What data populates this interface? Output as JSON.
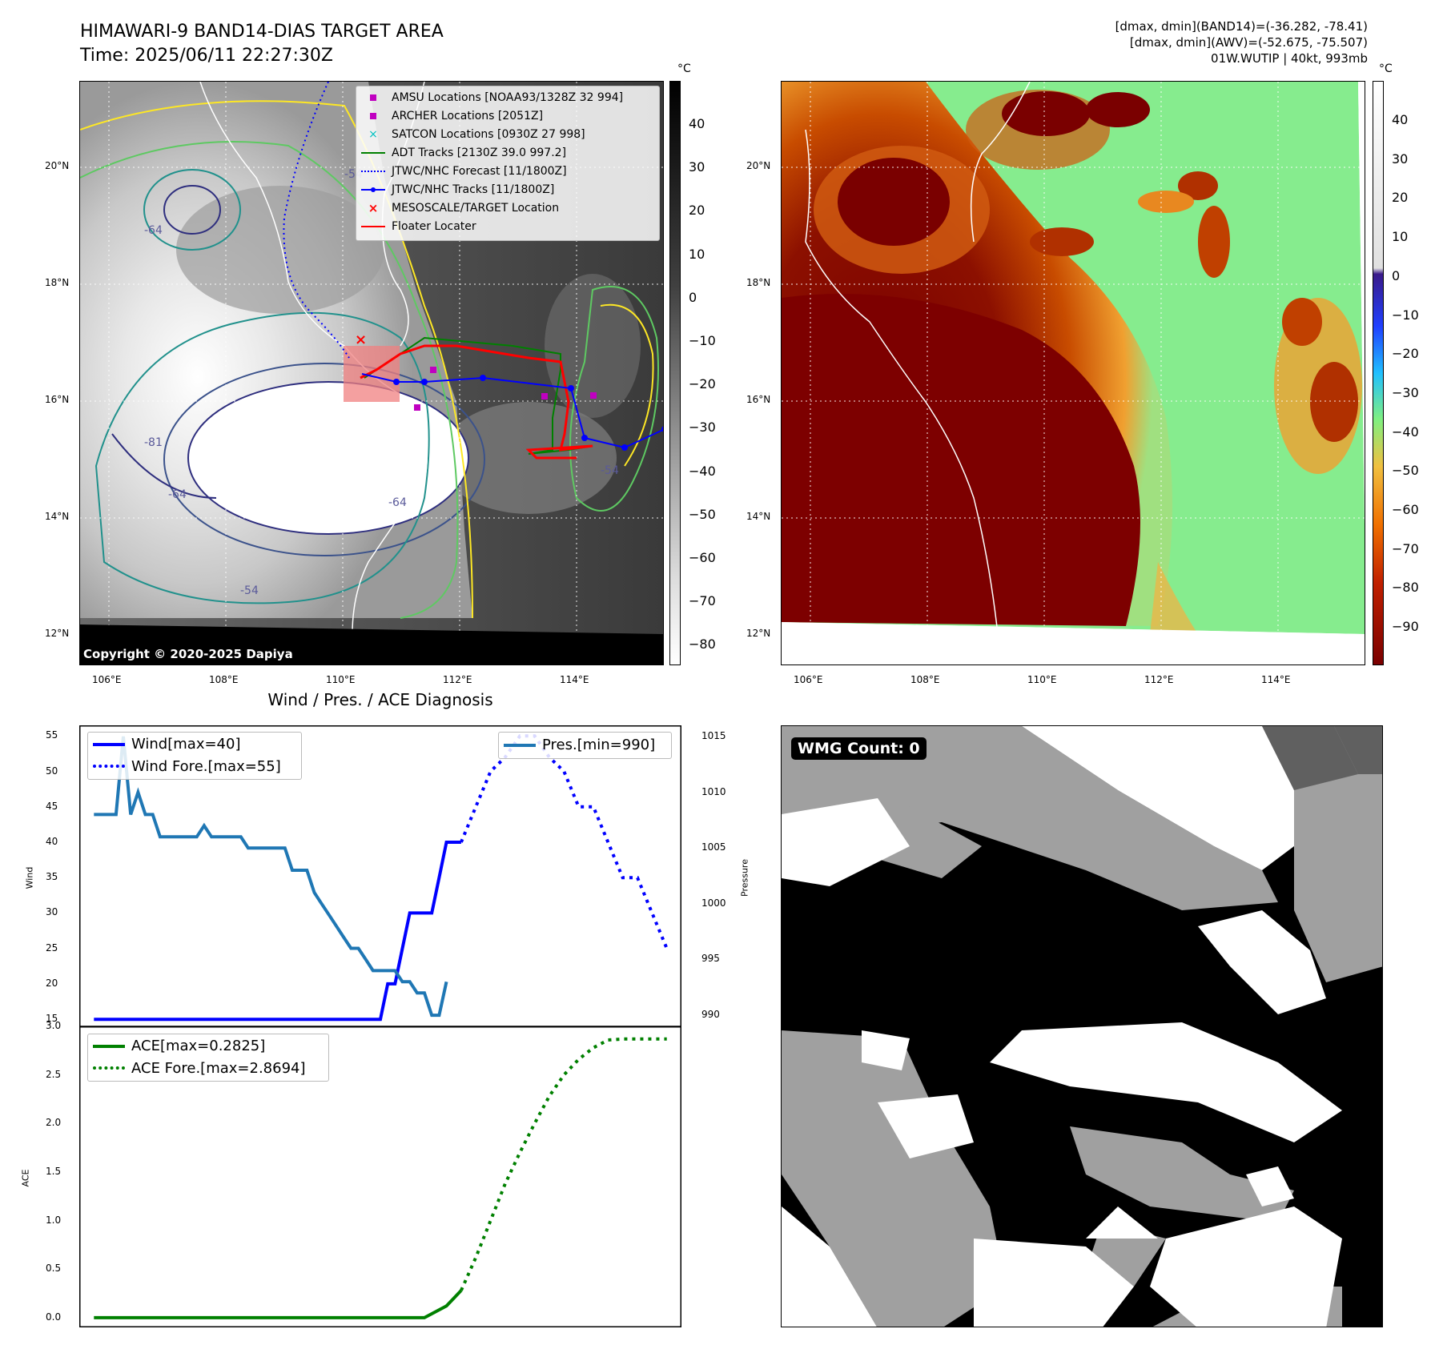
{
  "header": {
    "title_line1": "HIMAWARI-9 BAND14-DIAS TARGET AREA",
    "title_line2": "Time: 2025/06/11 22:27:30Z",
    "info_line1": "[dmax, dmin](BAND14)=(-36.282, -78.41)",
    "info_line2": "[dmax, dmin](AWV)=(-52.675, -75.507)",
    "info_line3": "01W.WUTIP | 40kt, 993mb"
  },
  "map_left": {
    "unit": "°C",
    "copyright": "Copyright © 2020-2025 Dapiya",
    "lat_labels": [
      "20°N",
      "18°N",
      "16°N",
      "14°N",
      "12°N"
    ],
    "lon_labels": [
      "106°E",
      "108°E",
      "110°E",
      "112°E",
      "114°E"
    ],
    "colorbar_ticks": [
      "40",
      "30",
      "20",
      "10",
      "0",
      "−10",
      "−20",
      "−30",
      "−40",
      "−50",
      "−60",
      "−70",
      "−80"
    ],
    "contour_labels": [
      "-64",
      "-54",
      "-81",
      "-64",
      "-54",
      "-64",
      "-54"
    ],
    "legend": [
      {
        "label": "AMSU Locations [NOAA93/1328Z 32 994]",
        "color": "#c000c0",
        "marker": "square"
      },
      {
        "label": "ARCHER Locations [2051Z]",
        "color": "#c000c0",
        "marker": "square"
      },
      {
        "label": "SATCON Locations [0930Z 27 998]",
        "color": "#00c0c0",
        "marker": "x"
      },
      {
        "label": "ADT Tracks [2130Z 39.0 997.2]",
        "color": "#008000",
        "marker": "line"
      },
      {
        "label": "JTWC/NHC Forecast [11/1800Z]",
        "color": "#0000ff",
        "marker": "dotted"
      },
      {
        "label": "JTWC/NHC Tracks [11/1800Z]",
        "color": "#0000ff",
        "marker": "line-dot"
      },
      {
        "label": "MESOSCALE/TARGET Location",
        "color": "#ff0000",
        "marker": "x"
      },
      {
        "label": "Floater Locater",
        "color": "#ff0000",
        "marker": "line"
      }
    ]
  },
  "map_right": {
    "unit": "°C",
    "lat_labels": [
      "20°N",
      "18°N",
      "16°N",
      "14°N",
      "12°N"
    ],
    "lon_labels": [
      "106°E",
      "108°E",
      "110°E",
      "112°E",
      "114°E"
    ],
    "colorbar_ticks": [
      "40",
      "30",
      "20",
      "10",
      "0",
      "−10",
      "−20",
      "−30",
      "−40",
      "−50",
      "−60",
      "−70",
      "−80",
      "−90"
    ]
  },
  "wmg_panel": {
    "badge": "WMG Count: 0"
  },
  "chart_data": [
    {
      "type": "line",
      "title": "Wind / Pres. / ACE Diagnosis",
      "ylabel": "Wind",
      "ylabel_right": "Pressure",
      "ylim": [
        14,
        56.5
      ],
      "ylim_right": [
        989,
        1016
      ],
      "yticks": [
        15,
        20,
        25,
        30,
        35,
        40,
        45,
        50,
        55
      ],
      "yticks_right": [
        990,
        995,
        1000,
        1005,
        1010,
        1015
      ],
      "x": [
        0,
        1,
        2,
        3,
        4,
        5,
        6,
        7,
        8,
        9,
        10,
        11,
        12,
        13,
        14,
        15,
        16,
        17,
        18,
        19,
        20,
        21,
        22,
        23,
        24,
        25,
        26,
        27,
        28,
        29,
        30,
        31,
        32,
        33,
        34,
        35,
        36,
        37,
        38,
        39,
        40,
        41,
        42,
        43,
        44,
        45,
        46,
        47,
        48,
        49,
        50
      ],
      "series": [
        {
          "name": "Wind[max=40]",
          "color": "#0000ff",
          "style": "solid",
          "x": [
            0,
            5,
            10,
            15,
            20,
            25,
            30,
            35,
            38,
            39,
            40,
            41,
            42,
            43,
            44,
            45,
            46,
            47,
            48,
            49,
            50
          ],
          "values": [
            15,
            15,
            15,
            15,
            15,
            15,
            15,
            15,
            15,
            15,
            20,
            20,
            25,
            30,
            30,
            30,
            30,
            35,
            40,
            40,
            40
          ]
        },
        {
          "name": "Wind Fore.[max=55]",
          "color": "#0000ff",
          "style": "dotted",
          "x": [
            50,
            52,
            54,
            56,
            58,
            60,
            62,
            64,
            66,
            68,
            70,
            72,
            74,
            76,
            78
          ],
          "values": [
            40,
            45,
            50,
            52,
            55,
            55,
            52,
            50,
            45,
            45,
            40,
            35,
            35,
            30,
            25
          ]
        },
        {
          "name": "Pres.[min=990]",
          "color": "#1f77b4",
          "style": "solid",
          "axis": "right",
          "x": [
            0,
            1,
            2,
            3,
            4,
            5,
            6,
            7,
            8,
            9,
            10,
            11,
            12,
            13,
            14,
            15,
            16,
            17,
            18,
            19,
            20,
            21,
            22,
            23,
            24,
            25,
            26,
            27,
            28,
            29,
            30,
            31,
            32,
            33,
            34,
            35,
            36,
            37,
            38,
            39,
            40,
            41,
            42,
            43,
            44,
            45,
            46,
            47,
            48
          ],
          "values": [
            1008,
            1008,
            1008,
            1008,
            1015,
            1008,
            1010,
            1008,
            1008,
            1006,
            1006,
            1006,
            1006,
            1006,
            1006,
            1007,
            1006,
            1006,
            1006,
            1006,
            1006,
            1005,
            1005,
            1005,
            1005,
            1005,
            1005,
            1003,
            1003,
            1003,
            1001,
            1000,
            999,
            998,
            997,
            996,
            996,
            995,
            994,
            994,
            994,
            994,
            993,
            993,
            992,
            992,
            990,
            990,
            993
          ]
        }
      ],
      "legend_left": [
        "Wind[max=40]",
        "Wind Fore.[max=55]"
      ],
      "legend_right": [
        "Pres.[min=990]"
      ]
    },
    {
      "type": "line",
      "ylabel": "ACE",
      "ylim": [
        -0.1,
        3.0
      ],
      "yticks": [
        "0.0",
        "0.5",
        "1.0",
        "1.5",
        "2.0",
        "2.5",
        "3.0"
      ],
      "series": [
        {
          "name": "ACE[max=0.2825]",
          "color": "#008000",
          "style": "solid",
          "x": [
            0,
            5,
            10,
            15,
            20,
            25,
            30,
            35,
            40,
            45,
            48,
            49,
            50
          ],
          "values": [
            0,
            0,
            0,
            0,
            0,
            0,
            0,
            0,
            0,
            0,
            0.12,
            0.2,
            0.28
          ]
        },
        {
          "name": "ACE Fore.[max=2.8694]",
          "color": "#008000",
          "style": "dotted",
          "x": [
            50,
            52,
            54,
            56,
            58,
            60,
            62,
            64,
            66,
            68,
            70,
            72,
            74,
            76,
            78
          ],
          "values": [
            0.28,
            0.62,
            1.0,
            1.38,
            1.7,
            2.0,
            2.28,
            2.5,
            2.66,
            2.78,
            2.86,
            2.87,
            2.87,
            2.87,
            2.87
          ]
        }
      ]
    }
  ]
}
